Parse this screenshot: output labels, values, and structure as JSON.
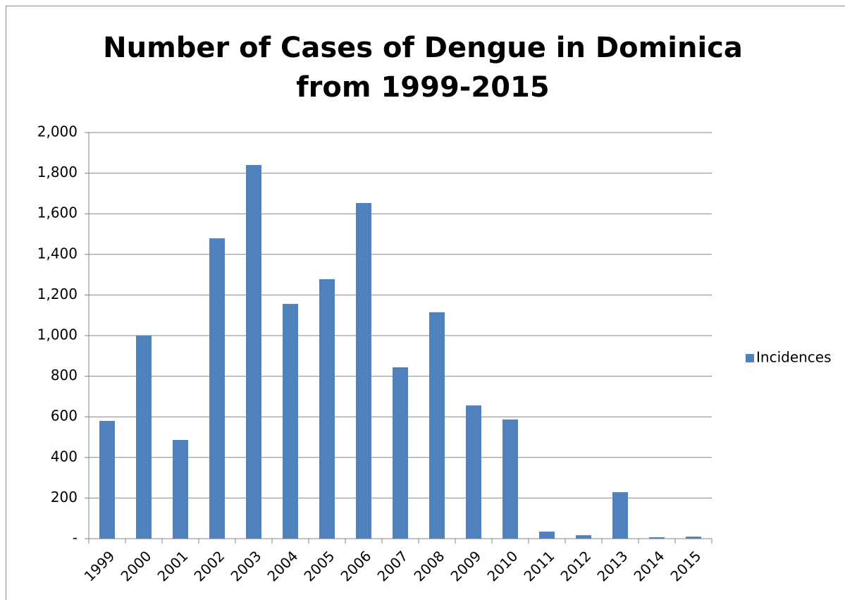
{
  "chart_data": {
    "type": "bar",
    "title": "Number of Cases of Dengue in Dominica from 1999-2015",
    "categories": [
      "1999",
      "2000",
      "2001",
      "2002",
      "2003",
      "2004",
      "2005",
      "2006",
      "2007",
      "2008",
      "2009",
      "2010",
      "2011",
      "2012",
      "2013",
      "2014",
      "2015"
    ],
    "series": [
      {
        "name": "Incidences",
        "color": "#4f81bd",
        "values": [
          580,
          1000,
          486,
          1479,
          1840,
          1156,
          1278,
          1653,
          844,
          1115,
          656,
          587,
          35,
          17,
          229,
          7,
          10
        ]
      }
    ],
    "ylim": [
      0,
      2000
    ],
    "yticks": [
      {
        "value": 0,
        "label": "-"
      },
      200,
      400,
      600,
      800,
      {
        "value": 1000,
        "label": "1,000"
      },
      {
        "value": 1200,
        "label": "1,200"
      },
      {
        "value": 1400,
        "label": "1,400"
      },
      {
        "value": 1600,
        "label": "1,600"
      },
      {
        "value": 1800,
        "label": "1,800"
      },
      {
        "value": 2000,
        "label": "2,000"
      }
    ],
    "grid": true,
    "legend": "right"
  }
}
